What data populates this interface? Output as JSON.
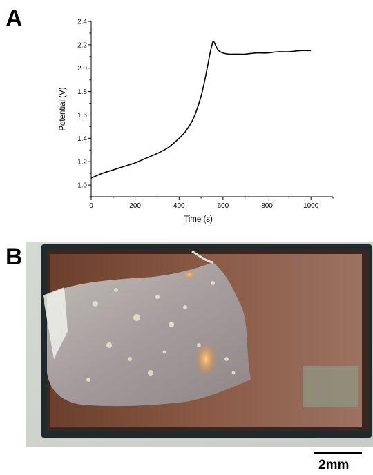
{
  "panels": {
    "a_label": "A",
    "b_label": "B"
  },
  "chart_data": {
    "type": "line",
    "title": "",
    "xlabel": "Time (s)",
    "ylabel": "Potential (V)",
    "xlim": [
      0,
      1100
    ],
    "ylim": [
      0.9,
      2.4
    ],
    "xticks": [
      0,
      200,
      400,
      600,
      800,
      1000
    ],
    "yticks": [
      1.0,
      1.2,
      1.4,
      1.6,
      1.8,
      2.0,
      2.2,
      2.4
    ],
    "xtick_labels": [
      "0",
      "200",
      "400",
      "600",
      "800",
      "1000"
    ],
    "ytick_labels": [
      "1.0",
      "1.2",
      "1.4",
      "1.6",
      "1.8",
      "2.0",
      "2.2",
      "2.4"
    ],
    "grid": false,
    "series": [
      {
        "color": "#000000",
        "x": [
          0,
          50,
          100,
          150,
          200,
          250,
          300,
          350,
          400,
          430,
          460,
          480,
          500,
          515,
          530,
          540,
          550,
          555,
          560,
          570,
          580,
          600,
          630,
          660,
          700,
          750,
          800,
          850,
          900,
          950,
          1000
        ],
        "y": [
          1.06,
          1.1,
          1.13,
          1.16,
          1.19,
          1.23,
          1.27,
          1.32,
          1.4,
          1.46,
          1.55,
          1.64,
          1.76,
          1.88,
          2.02,
          2.12,
          2.2,
          2.23,
          2.22,
          2.18,
          2.15,
          2.13,
          2.12,
          2.12,
          2.12,
          2.13,
          2.13,
          2.14,
          2.14,
          2.15,
          2.15
        ]
      }
    ]
  },
  "photo": {
    "scale_bar_label": "2mm"
  }
}
